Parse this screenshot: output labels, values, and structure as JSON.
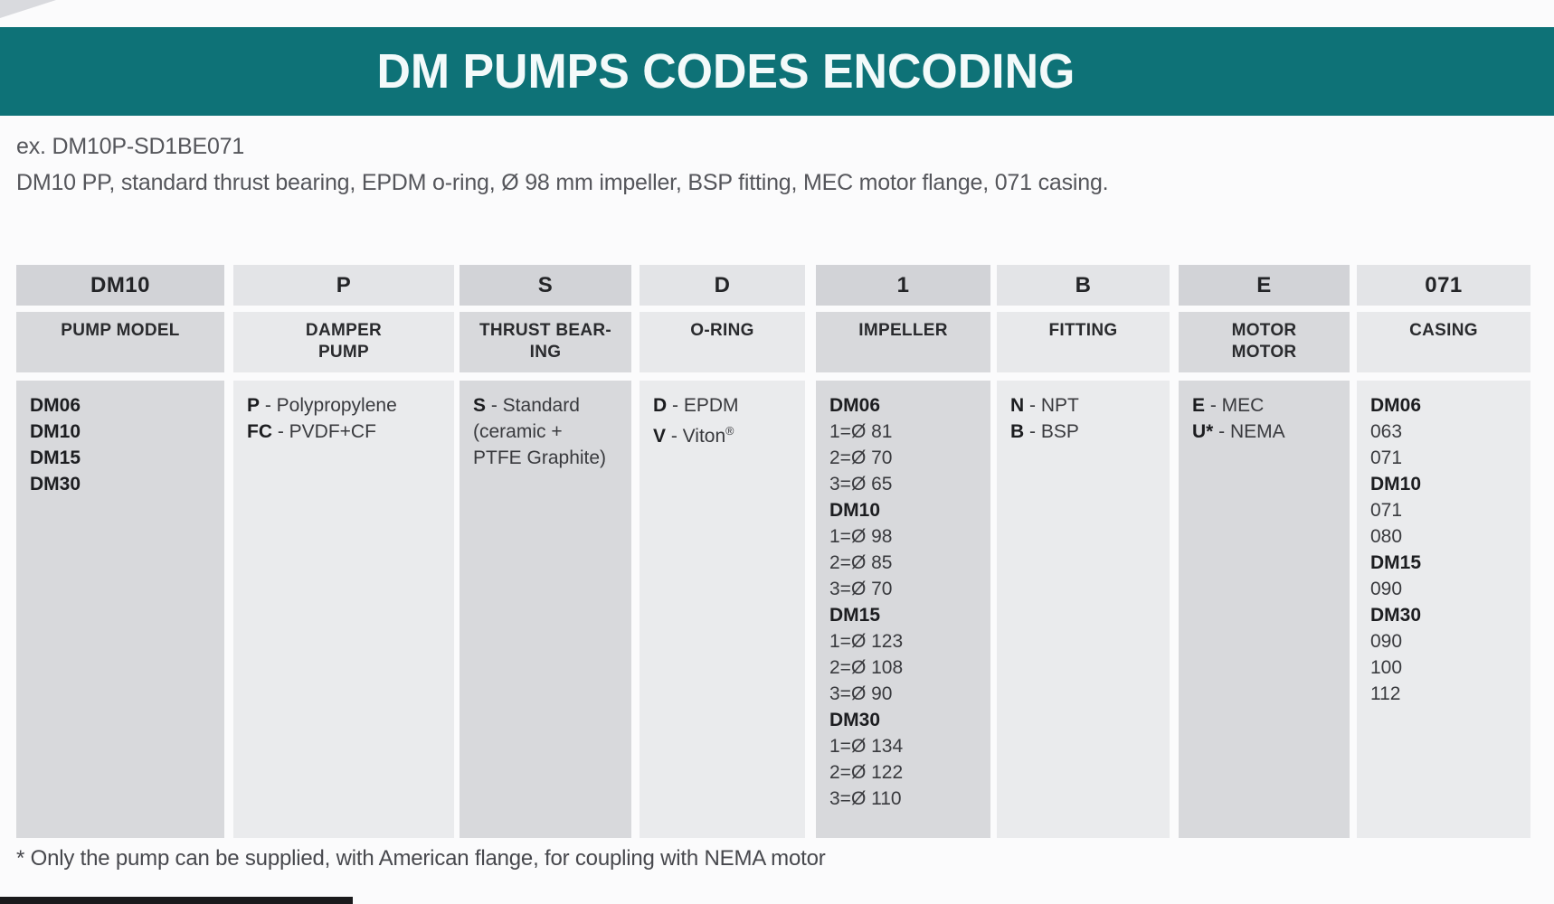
{
  "banner": {
    "title": "DM PUMPS CODES ENCODING"
  },
  "example": {
    "line1": "ex. DM10P-SD1BE071",
    "line2": "DM10 PP, standard thrust bearing, EPDM o-ring, Ø 98 mm impeller, BSP fitting, MEC motor flange, 071 casing."
  },
  "footnote": "* Only the pump can be supplied, with American flange, for coupling with NEMA motor",
  "colors": {
    "teal_banner": "#0e7277",
    "dark_cell": "#d8d9dc",
    "light_cell": "#eaebed",
    "bottom_bar": "#1a1a1c"
  },
  "table": {
    "columns": [
      {
        "code": "DM10",
        "header": [
          {
            "t": "PUMP MODEL"
          }
        ],
        "body": [
          {
            "b": "DM06"
          },
          {
            "b": "DM10"
          },
          {
            "b": "DM15"
          },
          {
            "b": "DM30"
          }
        ]
      },
      {
        "code": "P",
        "header": [
          {
            "t": "DAMPER"
          },
          {
            "t": "PUMP"
          }
        ],
        "body": [
          {
            "b": "P",
            "t": " - Polypropylene"
          },
          {
            "b": "FC",
            "t": " - PVDF+CF"
          }
        ]
      },
      {
        "code": "S",
        "header": [
          {
            "t": "THRUST BEAR-"
          },
          {
            "t": "ING"
          }
        ],
        "body": [
          {
            "b": "S",
            "t": " - Standard"
          },
          {
            "t": "(ceramic +"
          },
          {
            "t": "PTFE Graphite)"
          }
        ]
      },
      {
        "code": "D",
        "header": [
          {
            "t": "O-RING"
          }
        ],
        "body": [
          {
            "b": "D",
            "t": " - EPDM"
          },
          {
            "b": "V",
            "t": " - Viton",
            "sup": "®"
          }
        ]
      },
      {
        "code": "1",
        "header": [
          {
            "t": "IMPELLER"
          }
        ],
        "body": [
          {
            "b": "DM06"
          },
          {
            "t": "1=Ø 81"
          },
          {
            "t": "2=Ø 70"
          },
          {
            "t": "3=Ø 65"
          },
          {
            "b": "DM10"
          },
          {
            "t": "1=Ø 98"
          },
          {
            "t": "2=Ø 85"
          },
          {
            "t": "3=Ø 70"
          },
          {
            "b": "DM15"
          },
          {
            "t": "1=Ø 123"
          },
          {
            "t": "2=Ø 108"
          },
          {
            "t": "3=Ø 90"
          },
          {
            "b": "DM30"
          },
          {
            "t": "1=Ø 134"
          },
          {
            "t": "2=Ø 122"
          },
          {
            "t": "3=Ø 110"
          }
        ]
      },
      {
        "code": "B",
        "header": [
          {
            "t": "FITTING"
          }
        ],
        "body": [
          {
            "b": "N",
            "t": " - NPT"
          },
          {
            "b": "B",
            "t": " - BSP"
          }
        ]
      },
      {
        "code": "E",
        "header": [
          {
            "t": "MOTOR"
          },
          {
            "t": "MOTOR"
          }
        ],
        "body": [
          {
            "b": "E",
            "t": " - MEC"
          },
          {
            "b": "U*",
            "t": " - NEMA"
          }
        ]
      },
      {
        "code": "071",
        "header": [
          {
            "t": "CASING"
          }
        ],
        "body": [
          {
            "b": "DM06"
          },
          {
            "t": "063"
          },
          {
            "t": "071"
          },
          {
            "b": "DM10"
          },
          {
            "t": "071"
          },
          {
            "t": "080"
          },
          {
            "b": "DM15"
          },
          {
            "t": "090"
          },
          {
            "b": "DM30"
          },
          {
            "t": "090"
          },
          {
            "t": "100"
          },
          {
            "t": "112"
          }
        ]
      }
    ]
  }
}
